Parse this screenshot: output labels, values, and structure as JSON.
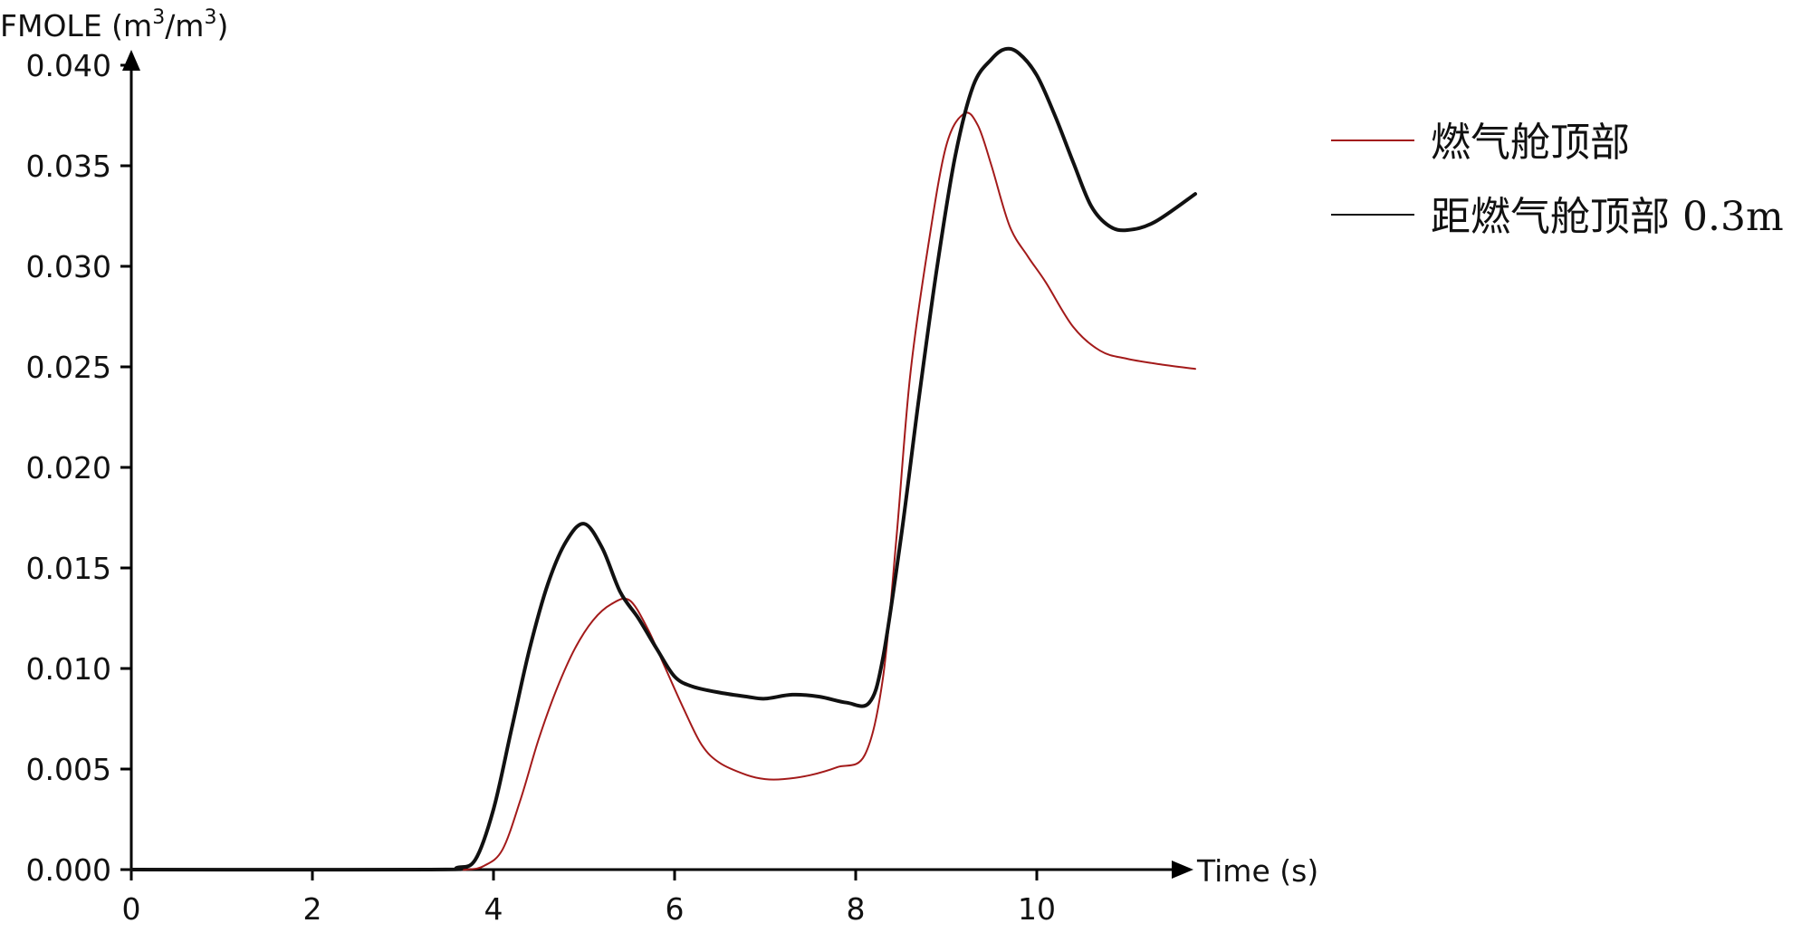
{
  "chart_data": {
    "type": "line",
    "ylabel_main": "FMOLE (m",
    "ylabel_sup1": "3",
    "ylabel_mid": "/m",
    "ylabel_sup2": "3",
    "ylabel_end": ")",
    "xlabel": "Time (s)",
    "xlim": [
      0,
      11.75
    ],
    "ylim": [
      0,
      0.04
    ],
    "x_ticks": [
      0,
      2,
      4,
      6,
      8,
      10
    ],
    "x_tick_labels": [
      "0",
      "2",
      "4",
      "6",
      "8",
      "10"
    ],
    "y_ticks": [
      0,
      0.005,
      0.01,
      0.015,
      0.02,
      0.025,
      0.03,
      0.035,
      0.04
    ],
    "y_tick_labels": [
      "0.000",
      "0.005",
      "0.010",
      "0.015",
      "0.020",
      "0.025",
      "0.030",
      "0.035",
      "0.040"
    ],
    "grid": false,
    "legend_position": "top-right",
    "series": [
      {
        "name": "燃气舱顶部",
        "color": "#a31a1a",
        "x": [
          0,
          3.3,
          3.7,
          3.9,
          4.1,
          4.3,
          4.5,
          4.7,
          4.9,
          5.1,
          5.3,
          5.5,
          5.7,
          5.9,
          6.1,
          6.3,
          6.5,
          6.8,
          7.0,
          7.2,
          7.5,
          7.8,
          8.1,
          8.3,
          8.45,
          8.6,
          8.8,
          9.0,
          9.2,
          9.35,
          9.5,
          9.7,
          9.9,
          10.1,
          10.4,
          10.7,
          11.0,
          11.4,
          11.75
        ],
        "y": [
          0,
          0,
          0,
          0.0002,
          0.001,
          0.0035,
          0.0065,
          0.009,
          0.011,
          0.0124,
          0.0132,
          0.0134,
          0.012,
          0.01,
          0.008,
          0.0062,
          0.0053,
          0.0047,
          0.0045,
          0.0045,
          0.0047,
          0.0051,
          0.0057,
          0.0095,
          0.0165,
          0.0245,
          0.031,
          0.036,
          0.0376,
          0.037,
          0.035,
          0.032,
          0.0305,
          0.0292,
          0.027,
          0.0258,
          0.0254,
          0.0251,
          0.0249
        ]
      },
      {
        "name": "距燃气舱顶部 0.3m",
        "color": "#111111",
        "x": [
          0,
          3.3,
          3.6,
          3.8,
          4.0,
          4.2,
          4.4,
          4.6,
          4.8,
          5.0,
          5.2,
          5.4,
          5.6,
          5.8,
          6.0,
          6.2,
          6.5,
          6.8,
          7.0,
          7.3,
          7.6,
          7.9,
          8.15,
          8.3,
          8.5,
          8.7,
          8.9,
          9.1,
          9.3,
          9.5,
          9.65,
          9.8,
          10.0,
          10.2,
          10.4,
          10.6,
          10.8,
          11.0,
          11.3,
          11.75
        ],
        "y": [
          0,
          0,
          0.0001,
          0.0005,
          0.003,
          0.007,
          0.011,
          0.0142,
          0.0163,
          0.0172,
          0.016,
          0.0138,
          0.0125,
          0.011,
          0.0096,
          0.0091,
          0.0088,
          0.0086,
          0.0085,
          0.0087,
          0.0086,
          0.0083,
          0.0083,
          0.0105,
          0.0165,
          0.0235,
          0.03,
          0.0355,
          0.039,
          0.0403,
          0.0408,
          0.0406,
          0.0395,
          0.0375,
          0.0352,
          0.033,
          0.032,
          0.0318,
          0.0322,
          0.0336
        ]
      }
    ]
  }
}
